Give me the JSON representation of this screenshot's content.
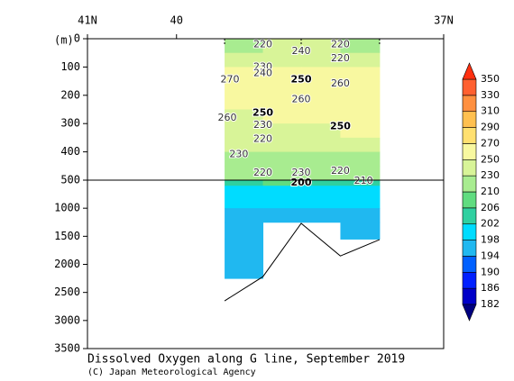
{
  "chart_data": {
    "type": "section",
    "title": "Dissolved Oxygen along G line, September 2019",
    "credit": "(C) Japan Meteorological Agency",
    "y_label": "(m)",
    "xlim": [
      41,
      37
    ],
    "xticks": [
      {
        "value": 41,
        "label": "41N"
      },
      40,
      {
        "value": 37,
        "label": "37N"
      }
    ],
    "stations": [
      39.46,
      39.03,
      38.6,
      38.16,
      37.72
    ],
    "ylim_upper": [
      0,
      500
    ],
    "yticks_upper": [
      0,
      100,
      200,
      300,
      400,
      500
    ],
    "ylim_lower": [
      500,
      3500
    ],
    "yticks_lower": [
      1000,
      1500,
      2000,
      2500,
      3000,
      3500
    ],
    "section": {
      "lat_edges": [
        39.46,
        39.03,
        38.6,
        38.16,
        37.72
      ],
      "depth_edges": [
        0,
        50,
        100,
        150,
        200,
        250,
        300,
        350,
        400,
        450,
        500,
        600,
        1000,
        1250,
        1550,
        2250
      ],
      "values": [
        [
          210,
          230,
          232,
          225
        ],
        [
          245,
          242,
          245,
          240
        ],
        [
          258,
          252,
          256,
          255
        ],
        [
          262,
          262,
          262,
          260
        ],
        [
          258,
          260,
          260,
          260
        ],
        [
          248,
          250,
          255,
          258
        ],
        [
          235,
          240,
          245,
          250
        ],
        [
          230,
          232,
          238,
          235
        ],
        [
          226,
          226,
          228,
          222
        ],
        [
          218,
          220,
          218,
          212
        ],
        [
          205,
          207,
          205,
          205
        ],
        [
          198,
          198,
          198,
          198
        ],
        [
          197,
          197,
          197,
          197
        ],
        [
          196,
          null,
          null,
          196
        ],
        [
          196,
          null,
          null,
          null
        ]
      ]
    },
    "bottom": {
      "lat": [
        39.46,
        39.03,
        38.6,
        38.16,
        37.72
      ],
      "depth": [
        2650,
        2220,
        1270,
        1850,
        1560
      ]
    },
    "contour_labels": [
      {
        "value": 220,
        "lat": 39.03,
        "depth": 20
      },
      {
        "value": 240,
        "lat": 38.6,
        "depth": 45
      },
      {
        "value": 220,
        "lat": 38.16,
        "depth": 20
      },
      {
        "value": 220,
        "lat": 38.16,
        "depth": 70
      },
      {
        "value": 230,
        "lat": 39.03,
        "depth": 100
      },
      {
        "value": 240,
        "lat": 39.03,
        "depth": 122
      },
      {
        "value": 270,
        "lat": 39.4,
        "depth": 145
      },
      {
        "value": 250,
        "lat": 38.6,
        "depth": 145
      },
      {
        "value": 260,
        "lat": 38.16,
        "depth": 160
      },
      {
        "value": 260,
        "lat": 38.6,
        "depth": 215
      },
      {
        "value": 260,
        "lat": 39.43,
        "depth": 280
      },
      {
        "value": 250,
        "lat": 39.03,
        "depth": 262
      },
      {
        "value": 250,
        "lat": 38.16,
        "depth": 310
      },
      {
        "value": 230,
        "lat": 39.03,
        "depth": 305
      },
      {
        "value": 220,
        "lat": 39.03,
        "depth": 355
      },
      {
        "value": 230,
        "lat": 39.3,
        "depth": 410
      },
      {
        "value": 220,
        "lat": 39.03,
        "depth": 475
      },
      {
        "value": 230,
        "lat": 38.6,
        "depth": 475
      },
      {
        "value": 220,
        "lat": 38.16,
        "depth": 468
      },
      {
        "value": 200,
        "lat": 38.6,
        "depth": 545
      },
      {
        "value": 210,
        "lat": 37.9,
        "depth": 515
      }
    ],
    "colorbar": {
      "levels": [
        182,
        186,
        190,
        194,
        198,
        202,
        206,
        210,
        230,
        250,
        270,
        290,
        310,
        330,
        350
      ],
      "colors": [
        "#000080",
        "#0000c8",
        "#0020ff",
        "#0060ff",
        "#20b8f0",
        "#00dcff",
        "#30d0a0",
        "#60dc80",
        "#a8ec90",
        "#d8f498",
        "#f8f8a0",
        "#ffe070",
        "#ffc050",
        "#ff9040",
        "#ff6030",
        "#ff3010"
      ]
    }
  }
}
